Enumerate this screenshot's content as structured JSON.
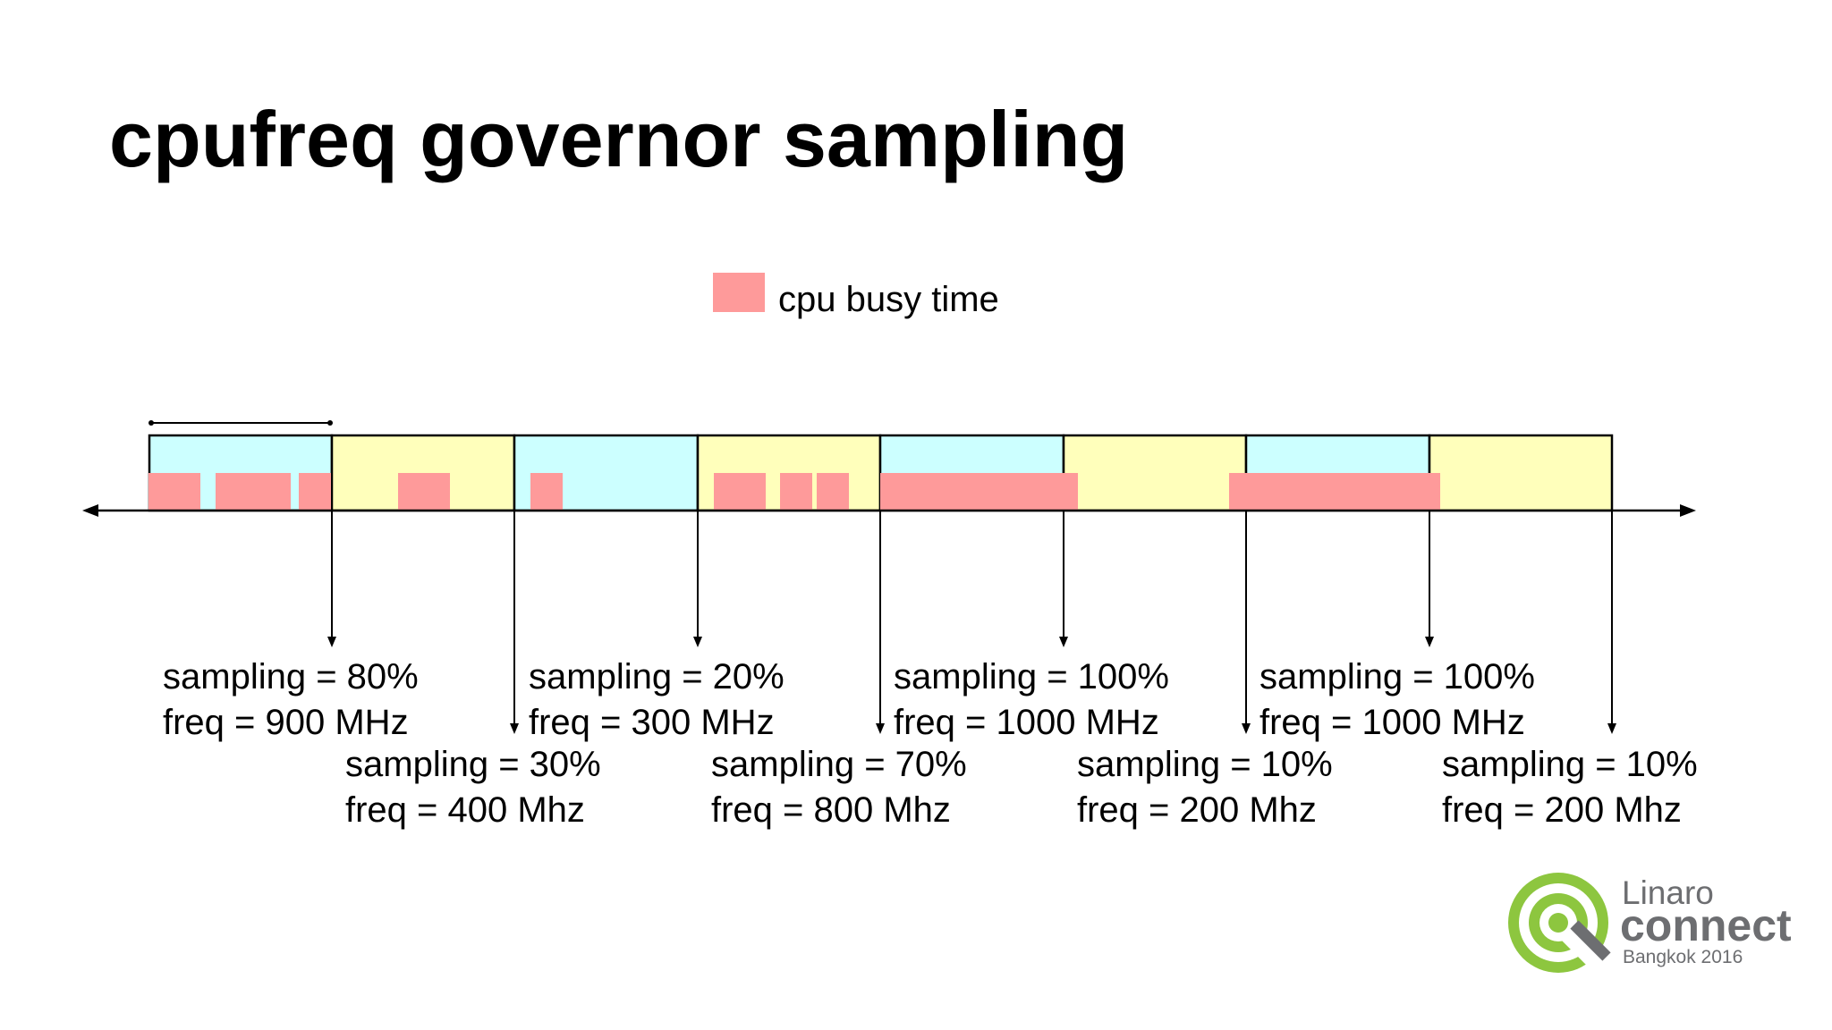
{
  "slide": {
    "title": "cpufreq governor sampling"
  },
  "legend": {
    "label": "cpu busy time",
    "color": "#fe9a9a"
  },
  "colors": {
    "window_cyan": "#ccffff",
    "window_yellow": "#ffffbb",
    "busy": "#fe9a9a",
    "logo_green": "#8dc63f",
    "logo_gray": "#6d6e71"
  },
  "samples": [
    {
      "sampling": "sampling = 80%",
      "freq": "freq = 900 MHz"
    },
    {
      "sampling": "sampling = 30%",
      "freq": "freq = 400 Mhz"
    },
    {
      "sampling": "sampling = 20%",
      "freq": "freq = 300 MHz"
    },
    {
      "sampling": "sampling = 70%",
      "freq": "freq = 800 Mhz"
    },
    {
      "sampling": "sampling = 100%",
      "freq": "freq = 1000 MHz"
    },
    {
      "sampling": "sampling = 10%",
      "freq": "freq = 200 Mhz"
    },
    {
      "sampling": "sampling = 100%",
      "freq": "freq = 1000 MHz"
    },
    {
      "sampling": "sampling = 10%",
      "freq": "freq = 200 Mhz"
    }
  ],
  "logo": {
    "brand": "Linaro",
    "event": "connect",
    "sub": "Bangkok 2016",
    "icon": "linaro-connect-logo-icon"
  }
}
